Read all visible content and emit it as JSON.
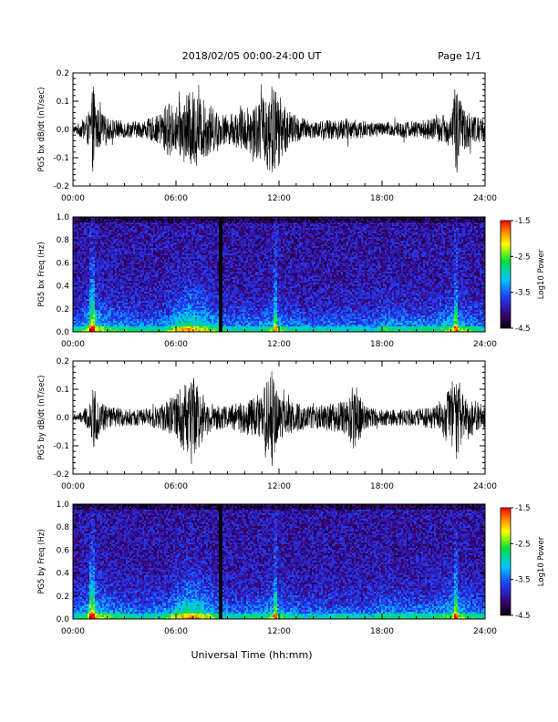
{
  "header": {
    "title": "2018/02/05  00:00-24:00 UT",
    "page": "Page 1/1"
  },
  "footer": {
    "xlabel": "Universal Time (hh:mm)"
  },
  "time_ticks": [
    "00:00",
    "06:00",
    "12:00",
    "18:00",
    "24:00"
  ],
  "chart_data": [
    {
      "type": "line",
      "panel": "bx-waveform",
      "ylabel": "PG5 bx dB/dt (nT/sec)",
      "xlim": [
        0,
        24
      ],
      "ylim": [
        -0.2,
        0.2
      ],
      "yticks": [
        "0.2",
        "0.1",
        "0.0",
        "-0.1",
        "-0.2"
      ],
      "envelope_hours": [
        0,
        0.5,
        1.0,
        1.2,
        1.4,
        2.0,
        3.0,
        4.0,
        5.0,
        5.5,
        6.0,
        6.5,
        7.0,
        7.5,
        8.0,
        8.5,
        9.0,
        10.0,
        11.0,
        11.5,
        12.0,
        12.5,
        13.0,
        14.0,
        15.0,
        16.0,
        17.0,
        18.0,
        19.0,
        20.0,
        21.0,
        22.0,
        22.3,
        22.8,
        23.5,
        24.0
      ],
      "envelope_amplitude": [
        0.01,
        0.03,
        0.07,
        0.17,
        0.08,
        0.04,
        0.03,
        0.03,
        0.05,
        0.1,
        0.08,
        0.12,
        0.14,
        0.11,
        0.09,
        0.06,
        0.05,
        0.08,
        0.11,
        0.17,
        0.13,
        0.07,
        0.05,
        0.03,
        0.035,
        0.04,
        0.03,
        0.025,
        0.03,
        0.03,
        0.04,
        0.06,
        0.17,
        0.07,
        0.05,
        0.04
      ]
    },
    {
      "type": "heatmap",
      "panel": "bx-spectrogram",
      "ylabel": "PG5 bx Freq (Hz)",
      "xlim": [
        0,
        24
      ],
      "ylim": [
        0,
        1.0
      ],
      "yticks": [
        "1.0",
        "0.8",
        "0.6",
        "0.4",
        "0.2",
        "0.0"
      ],
      "colorbar": {
        "label": "Log10 Power",
        "ticks": [
          "-1.5",
          "-2.5",
          "-3.5",
          "-4.5"
        ],
        "range": [
          -4.5,
          -1.5
        ]
      }
    },
    {
      "type": "line",
      "panel": "by-waveform",
      "ylabel": "PG5 by dB/dt (nT/sec)",
      "xlim": [
        0,
        24
      ],
      "ylim": [
        -0.2,
        0.2
      ],
      "yticks": [
        "0.2",
        "0.1",
        "0.0",
        "-0.1",
        "-0.2"
      ],
      "envelope_hours": [
        0,
        0.5,
        1.0,
        1.2,
        1.5,
        2.0,
        3.0,
        4.0,
        5.0,
        5.5,
        6.0,
        6.5,
        7.0,
        7.5,
        8.0,
        9.0,
        10.0,
        11.0,
        11.6,
        12.0,
        13.0,
        14.0,
        15.0,
        16.0,
        16.4,
        17.0,
        18.0,
        19.0,
        20.0,
        21.0,
        21.5,
        22.0,
        22.3,
        22.8,
        23.5,
        24.0
      ],
      "envelope_amplitude": [
        0.01,
        0.02,
        0.05,
        0.11,
        0.07,
        0.04,
        0.03,
        0.03,
        0.04,
        0.06,
        0.09,
        0.12,
        0.15,
        0.09,
        0.05,
        0.04,
        0.06,
        0.08,
        0.19,
        0.07,
        0.05,
        0.04,
        0.05,
        0.06,
        0.13,
        0.04,
        0.03,
        0.03,
        0.03,
        0.04,
        0.06,
        0.12,
        0.16,
        0.08,
        0.06,
        0.04
      ]
    },
    {
      "type": "heatmap",
      "panel": "by-spectrogram",
      "ylabel": "PG5 by Freq (Hz)",
      "xlim": [
        0,
        24
      ],
      "ylim": [
        0,
        1.0
      ],
      "yticks": [
        "1.0",
        "0.8",
        "0.6",
        "0.4",
        "0.2",
        "0.0"
      ],
      "colorbar": {
        "label": "Log10 Power",
        "ticks": [
          "-1.5",
          "-2.5",
          "-3.5",
          "-4.5"
        ],
        "range": [
          -4.5,
          -1.5
        ]
      }
    }
  ]
}
